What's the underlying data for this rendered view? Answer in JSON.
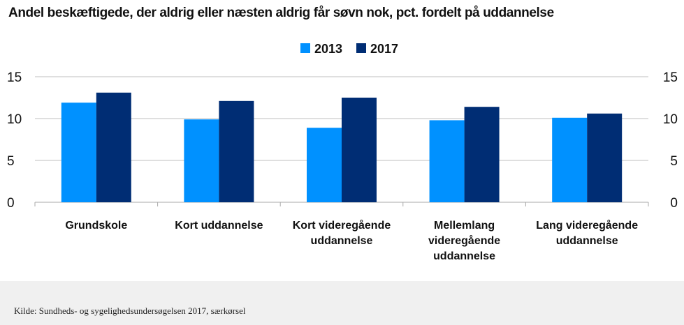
{
  "title": "Andel beskæftigede, der aldrig eller næsten aldrig får søvn nok, pct. fordelt på uddannelse",
  "source": "Kilde: Sundheds- og sygelighedsundersøgelsen 2017, særkørsel",
  "chart_data": {
    "type": "bar",
    "categories": [
      [
        "Grundskole"
      ],
      [
        "Kort uddannelse"
      ],
      [
        "Kort videregående",
        "uddannelse"
      ],
      [
        "Mellemlang",
        "videregående",
        "uddannelse"
      ],
      [
        "Lang videregående",
        "uddannelse"
      ]
    ],
    "series": [
      {
        "name": "2013",
        "color": "#0091ff",
        "values": [
          11.9,
          9.9,
          8.9,
          9.8,
          10.1
        ]
      },
      {
        "name": "2017",
        "color": "#002d74",
        "values": [
          13.1,
          12.1,
          12.5,
          11.4,
          10.6
        ]
      }
    ],
    "ylim": [
      0,
      15
    ],
    "yticks": [
      0,
      5,
      10,
      15
    ],
    "grid": true,
    "legend": "top-center",
    "xlabel": "",
    "ylabel": ""
  }
}
